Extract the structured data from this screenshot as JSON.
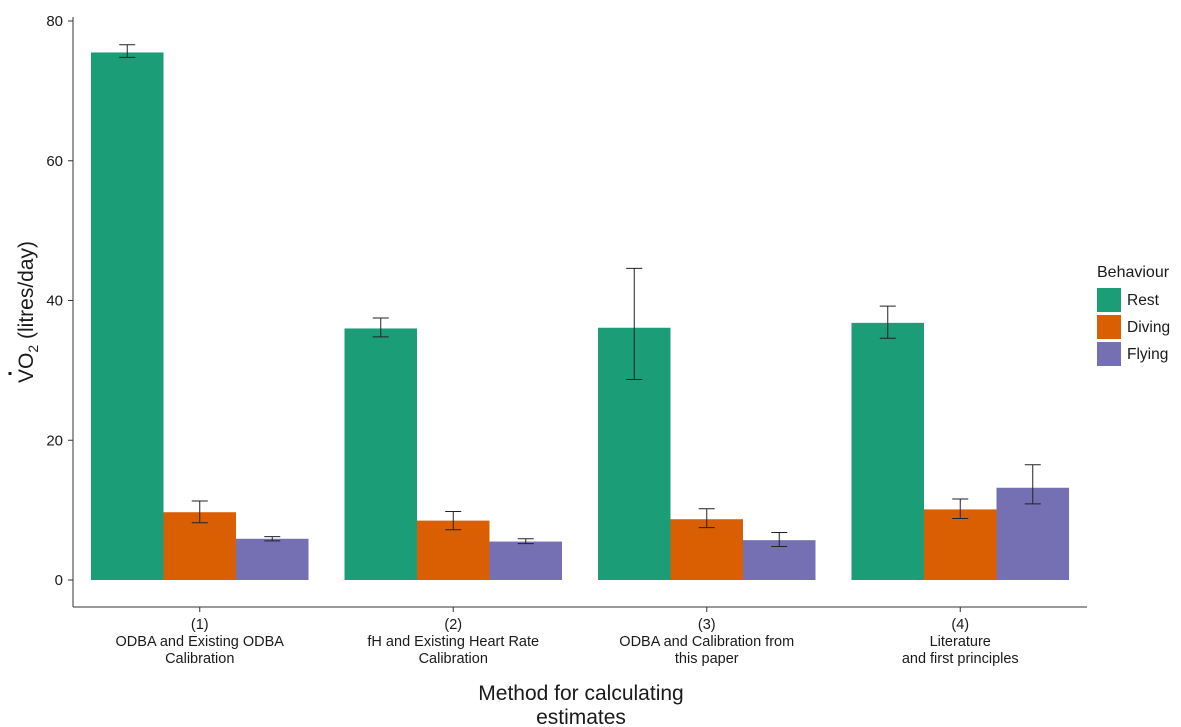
{
  "chart_data": {
    "type": "bar",
    "title": "",
    "xlabel_lines": [
      "Method for calculating",
      "estimates"
    ],
    "ylabel": "V̇O2 (litres/day)",
    "ylabel_main": "V",
    "ylabel_o": "O",
    "ylabel_sub": "2",
    "ylabel_rest": " (litres/day)",
    "ylim": [
      0,
      80
    ],
    "yticks": [
      "0",
      "20",
      "40",
      "60",
      "80"
    ],
    "categories": [
      {
        "number": "(1)",
        "line1": "ODBA and Existing ODBA",
        "line2": "Calibration"
      },
      {
        "number": "(2)",
        "line1": "fH and Existing Heart Rate",
        "line2": "Calibration"
      },
      {
        "number": "(3)",
        "line1": "ODBA and Calibration from",
        "line2": "this paper"
      },
      {
        "number": "(4)",
        "line1": "Literature",
        "line2": "and first principles"
      }
    ],
    "legend_title": "Behaviour",
    "legend_position": "right",
    "grid": false,
    "series": [
      {
        "name": "Rest",
        "color": "#1b9e77",
        "values": [
          75.5,
          36.0,
          36.1,
          36.8
        ],
        "err_low": [
          74.8,
          34.8,
          28.7,
          34.6
        ],
        "err_high": [
          76.6,
          37.5,
          44.6,
          39.2
        ]
      },
      {
        "name": "Diving",
        "color": "#d95f02",
        "values": [
          9.7,
          8.5,
          8.7,
          10.1
        ],
        "err_low": [
          8.2,
          7.2,
          7.5,
          8.8
        ],
        "err_high": [
          11.3,
          9.8,
          10.2,
          11.6
        ]
      },
      {
        "name": "Flying",
        "color": "#7570b3",
        "values": [
          5.9,
          5.5,
          5.7,
          13.2
        ],
        "err_low": [
          5.6,
          5.2,
          4.8,
          10.9
        ],
        "err_high": [
          6.2,
          5.9,
          6.8,
          16.5
        ]
      }
    ]
  }
}
